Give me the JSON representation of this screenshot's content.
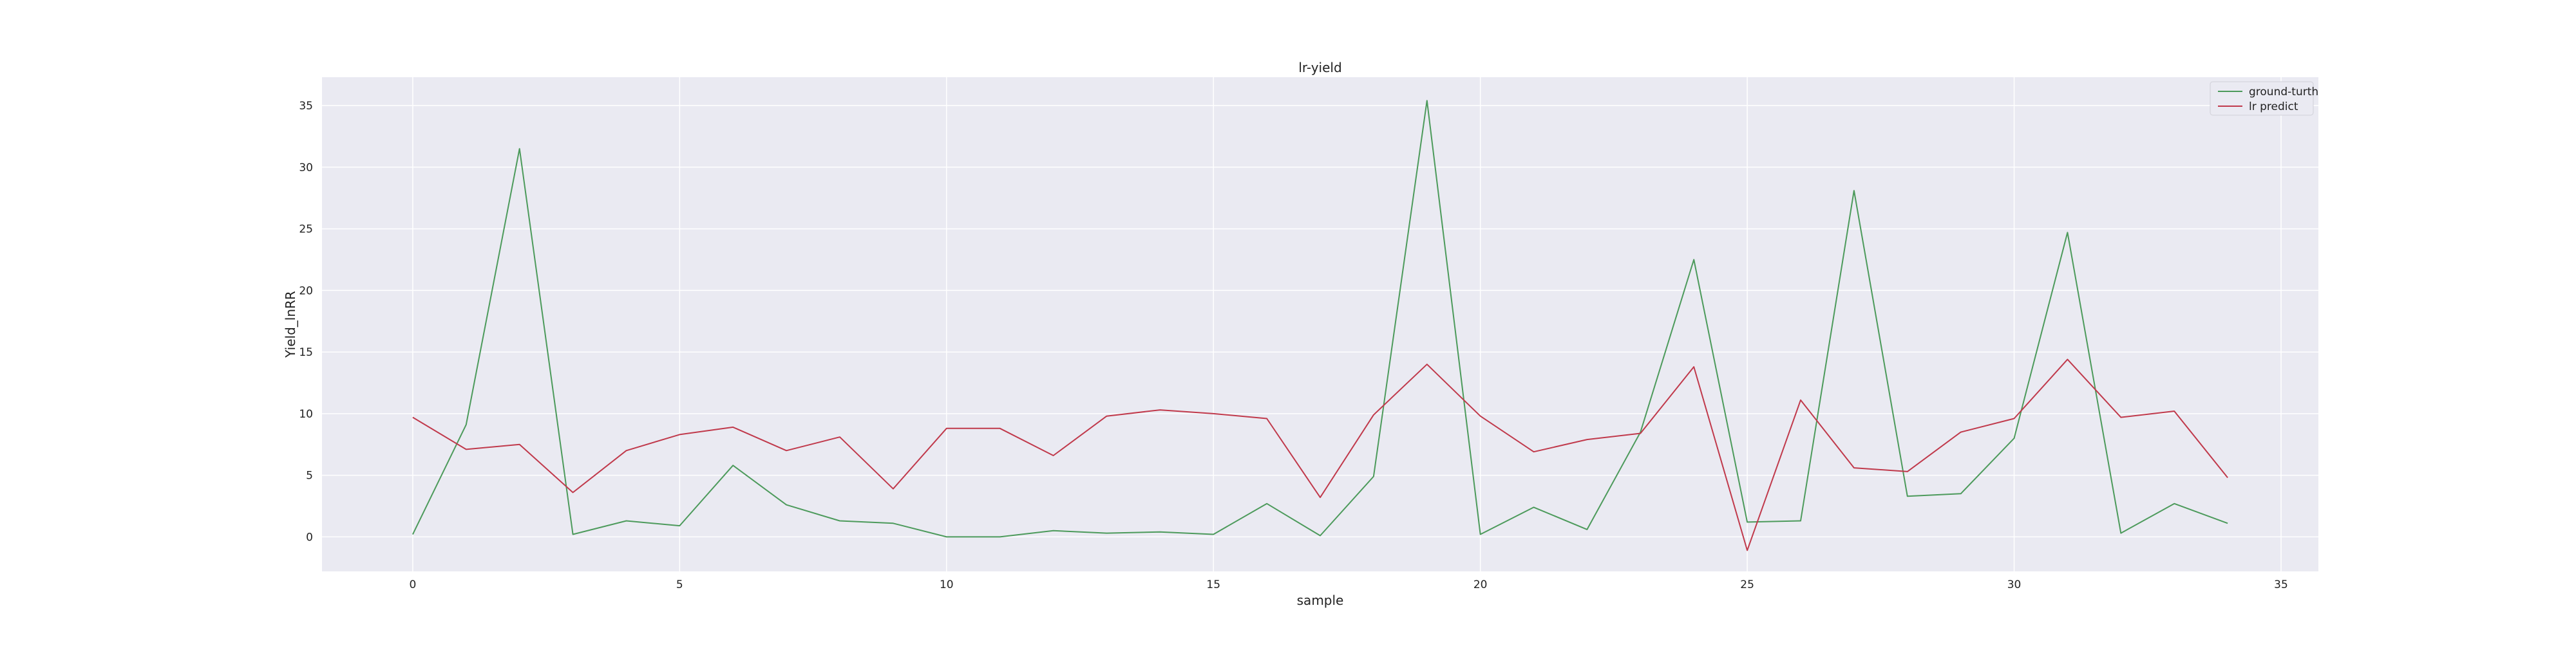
{
  "chart_data": {
    "type": "line",
    "title": "lr-yield",
    "xlabel": "sample",
    "ylabel": "Yield_lnRR",
    "xlim": [
      -1.7,
      35.7
    ],
    "ylim": [
      -2.8,
      37.3
    ],
    "xticks": [
      0,
      5,
      10,
      15,
      20,
      25,
      30,
      35
    ],
    "yticks": [
      0,
      5,
      10,
      15,
      20,
      25,
      30,
      35
    ],
    "grid": true,
    "legend_position": "top-right",
    "x": [
      0,
      1,
      2,
      3,
      4,
      5,
      6,
      7,
      8,
      9,
      10,
      11,
      12,
      13,
      14,
      15,
      16,
      17,
      18,
      19,
      20,
      21,
      22,
      23,
      24,
      25,
      26,
      27,
      28,
      29,
      30,
      31,
      32,
      33,
      34
    ],
    "series": [
      {
        "name": "ground-turth",
        "color": "#4c9a5b",
        "values": [
          0.2,
          9.1,
          31.5,
          0.2,
          1.3,
          0.9,
          5.8,
          2.6,
          1.3,
          1.1,
          0.0,
          0.0,
          0.5,
          0.3,
          0.4,
          0.2,
          2.7,
          0.1,
          4.9,
          35.4,
          0.2,
          2.4,
          0.6,
          8.5,
          22.5,
          1.2,
          1.3,
          28.1,
          3.3,
          3.5,
          8.0,
          24.7,
          0.3,
          2.7,
          1.1
        ]
      },
      {
        "name": "lr predict",
        "color": "#c0394b",
        "values": [
          9.7,
          7.1,
          7.5,
          3.6,
          7.0,
          8.3,
          8.9,
          7.0,
          8.1,
          3.9,
          8.8,
          8.8,
          6.6,
          9.8,
          10.3,
          10.0,
          9.6,
          3.2,
          9.9,
          14.0,
          9.8,
          6.9,
          7.9,
          8.4,
          13.8,
          -1.1,
          11.1,
          5.6,
          5.3,
          8.5,
          9.6,
          14.4,
          9.7,
          10.2,
          4.8
        ]
      }
    ]
  },
  "colors": {
    "plot_background": "#eaeaf2",
    "grid": "#ffffff",
    "page_background": "#ffffff"
  }
}
